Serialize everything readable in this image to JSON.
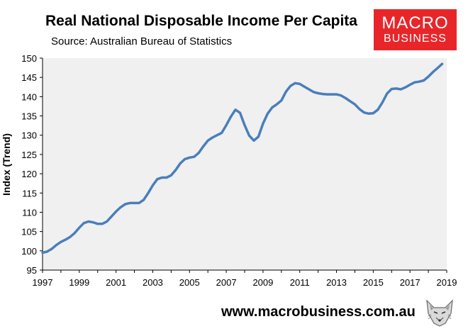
{
  "header": {
    "title": "Real National Disposable Income Per Capita",
    "subtitle": "Source: Australian Bureau of Statistics"
  },
  "logo": {
    "line1": "MACRO",
    "line2": "BUSINESS"
  },
  "footer": {
    "website": "www.macrobusiness.com.au",
    "mascot_icon": "fox-icon"
  },
  "colors": {
    "line": "#4a7ebb",
    "plot_bg": "#f0f0f0",
    "logo_bg": "#e8262a"
  },
  "chart_data": {
    "type": "line",
    "title": "Real National Disposable Income Per Capita",
    "subtitle": "Source: Australian Bureau of Statistics",
    "ylabel": "Index (Trend)",
    "xlabel": "",
    "xlim": [
      1997,
      2019
    ],
    "ylim": [
      95,
      150
    ],
    "x_ticks": [
      "1997",
      "1999",
      "2001",
      "2003",
      "2005",
      "2007",
      "2009",
      "2011",
      "2013",
      "2015",
      "2017",
      "2019"
    ],
    "y_ticks": [
      "95",
      "100",
      "105",
      "110",
      "115",
      "120",
      "125",
      "130",
      "135",
      "140",
      "145",
      "150"
    ],
    "grid": false,
    "series": [
      {
        "x": [
          1997.0,
          1997.25,
          1997.5,
          1997.75,
          1998.0,
          1998.25,
          1998.5,
          1998.75,
          1999.0,
          1999.25,
          1999.5,
          1999.75,
          2000.0,
          2000.25,
          2000.5,
          2000.75,
          2001.0,
          2001.25,
          2001.5,
          2001.75,
          2002.0,
          2002.25,
          2002.5,
          2002.75,
          2003.0,
          2003.25,
          2003.5,
          2003.75,
          2004.0,
          2004.25,
          2004.5,
          2004.75,
          2005.0,
          2005.25,
          2005.5,
          2005.75,
          2006.0,
          2006.25,
          2006.5,
          2006.75,
          2007.0,
          2007.25,
          2007.5,
          2007.75,
          2008.0,
          2008.25,
          2008.5,
          2008.75,
          2009.0,
          2009.25,
          2009.5,
          2009.75,
          2010.0,
          2010.25,
          2010.5,
          2010.75,
          2011.0,
          2011.25,
          2011.5,
          2011.75,
          2012.0,
          2012.25,
          2012.5,
          2012.75,
          2013.0,
          2013.25,
          2013.5,
          2013.75,
          2014.0,
          2014.25,
          2014.5,
          2014.75,
          2015.0,
          2015.25,
          2015.5,
          2015.75,
          2016.0,
          2016.25,
          2016.5,
          2016.75,
          2017.0,
          2017.25,
          2017.5,
          2017.75,
          2018.0,
          2018.25,
          2018.5,
          2018.75
        ],
        "values": [
          99.5,
          99.8,
          100.5,
          101.5,
          102.3,
          102.9,
          103.6,
          104.6,
          106.0,
          107.2,
          107.6,
          107.4,
          107.0,
          107.0,
          107.6,
          108.9,
          110.2,
          111.3,
          112.1,
          112.4,
          112.4,
          112.4,
          113.2,
          115.0,
          117.0,
          118.6,
          119.0,
          119.0,
          119.6,
          121.0,
          122.7,
          123.8,
          124.2,
          124.4,
          125.4,
          127.1,
          128.6,
          129.4,
          130.0,
          130.6,
          132.6,
          134.8,
          136.6,
          135.8,
          132.6,
          129.9,
          128.6,
          129.6,
          133.0,
          135.6,
          137.2,
          138.0,
          139.0,
          141.3,
          142.8,
          143.5,
          143.3,
          142.6,
          141.9,
          141.2,
          140.9,
          140.7,
          140.6,
          140.6,
          140.6,
          140.3,
          139.6,
          138.8,
          138.0,
          136.8,
          135.9,
          135.6,
          135.7,
          136.6,
          138.5,
          140.8,
          142.0,
          142.1,
          141.9,
          142.4,
          143.1,
          143.7,
          143.9,
          144.2,
          145.2,
          146.4,
          147.4,
          148.5
        ]
      }
    ]
  }
}
